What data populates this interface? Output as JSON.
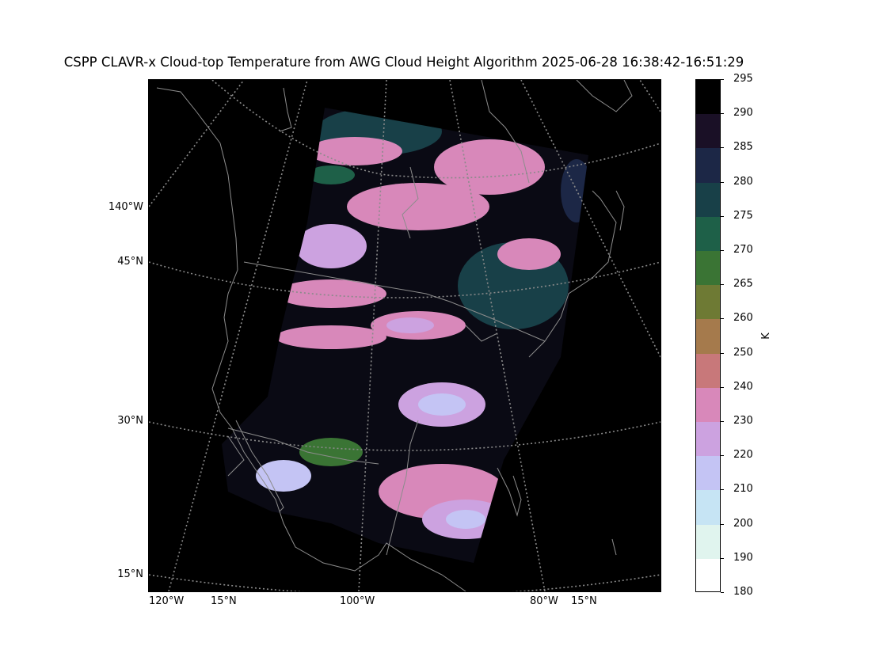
{
  "title": "CSPP CLAVR-x Cloud-top Temperature from AWG Cloud Height Algorithm 2025-06-28 16:38:42-16:51:29",
  "map": {
    "left_labels": [
      "140°W",
      "45°N",
      "30°N",
      "15°N"
    ],
    "bottom_labels": [
      "120°W",
      "15°N",
      "100°W",
      "80°W",
      "15°N"
    ]
  },
  "colorbar": {
    "unit": "K",
    "ticks": [
      "295",
      "290",
      "285",
      "280",
      "275",
      "270",
      "265",
      "260",
      "250",
      "240",
      "230",
      "220",
      "210",
      "200",
      "190",
      "180"
    ],
    "colors": [
      "#000000",
      "#1a1026",
      "#1c2746",
      "#184048",
      "#1e6048",
      "#3a7434",
      "#6e7a34",
      "#a57a4c",
      "#c8787a",
      "#d888ba",
      "#cca2e0",
      "#c4c4f4",
      "#c6e4f4",
      "#e0f4ee",
      "#ffffff"
    ]
  }
}
